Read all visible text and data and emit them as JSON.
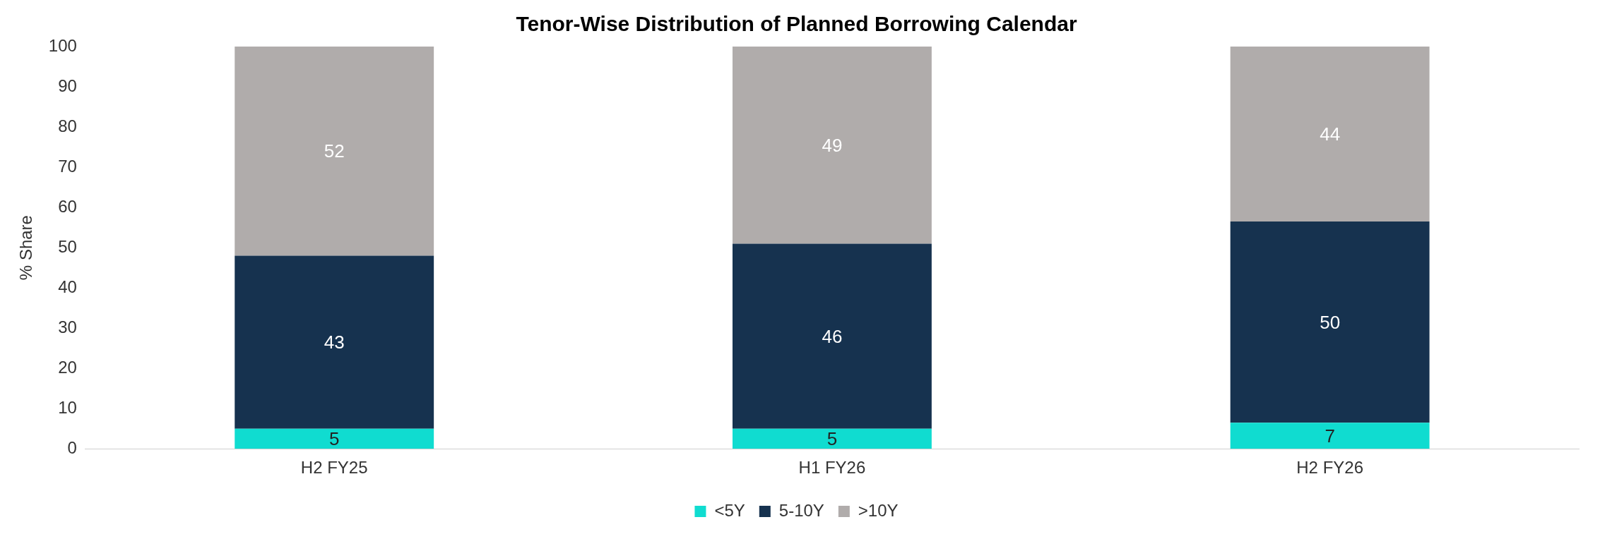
{
  "chart_data": {
    "type": "bar",
    "title": "Tenor-Wise Distribution of Planned Borrowing Calendar",
    "ylabel": "% Share",
    "categories": [
      "H2 FY25",
      "H1 FY26",
      "H2 FY26"
    ],
    "series": [
      {
        "name": "<5Y",
        "color": "#10dcd0",
        "values": [
          5,
          5,
          6.5
        ],
        "value_labels": [
          "5",
          "5",
          "7"
        ]
      },
      {
        "name": "5-10Y",
        "color": "#16324f",
        "values": [
          43,
          46,
          50
        ],
        "value_labels": [
          "43",
          "46",
          "50"
        ]
      },
      {
        "name": ">10Y",
        "color": "#b0acab",
        "values": [
          52,
          49,
          43.5
        ],
        "value_labels": [
          "52",
          "49",
          "44"
        ]
      }
    ],
    "stacked": true,
    "ylim": [
      0,
      100
    ],
    "yticks": [
      0,
      10,
      20,
      30,
      40,
      50,
      60,
      70,
      80,
      90,
      100
    ],
    "grid": false,
    "legend": "bottom"
  }
}
